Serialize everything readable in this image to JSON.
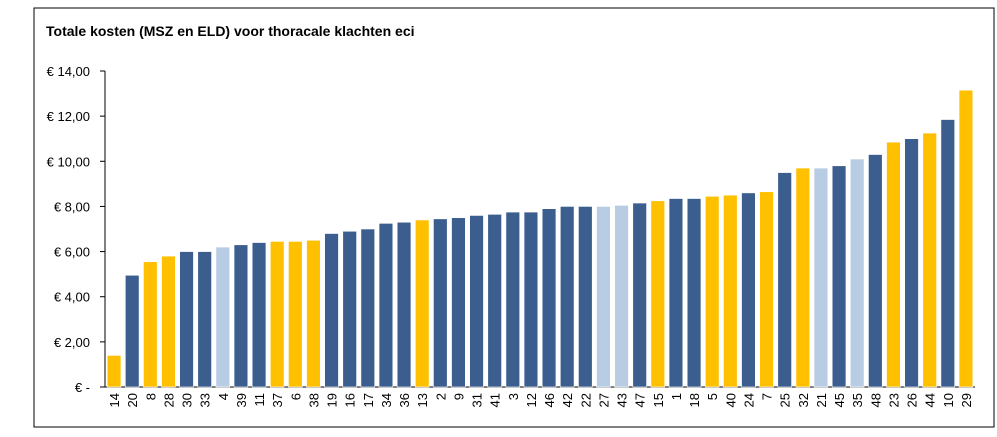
{
  "chart_data": {
    "type": "bar",
    "title": "Totale kosten (MSZ en ELD) voor thoracale klachten eci",
    "categories": [
      "14",
      "20",
      "8",
      "28",
      "30",
      "33",
      "4",
      "39",
      "11",
      "37",
      "6",
      "38",
      "19",
      "16",
      "17",
      "34",
      "36",
      "13",
      "2",
      "9",
      "31",
      "41",
      "3",
      "12",
      "46",
      "42",
      "22",
      "27",
      "43",
      "47",
      "15",
      "1",
      "18",
      "5",
      "40",
      "24",
      "7",
      "25",
      "32",
      "21",
      "45",
      "35",
      "48",
      "23",
      "26",
      "44",
      "10",
      "29"
    ],
    "values": [
      1.4,
      4.95,
      5.55,
      5.8,
      6.0,
      6.0,
      6.2,
      6.3,
      6.4,
      6.45,
      6.45,
      6.5,
      6.8,
      6.9,
      7.0,
      7.25,
      7.3,
      7.4,
      7.45,
      7.5,
      7.6,
      7.65,
      7.75,
      7.75,
      7.9,
      8.0,
      8.0,
      8.0,
      8.05,
      8.15,
      8.25,
      8.35,
      8.35,
      8.45,
      8.5,
      8.6,
      8.65,
      9.5,
      9.7,
      9.7,
      9.8,
      10.1,
      10.3,
      10.85,
      11.0,
      11.25,
      11.85,
      13.15
    ],
    "colors": [
      "#ffc000",
      "#3b5e8f",
      "#ffc000",
      "#ffc000",
      "#3b5e8f",
      "#3b5e8f",
      "#b8cce4",
      "#3b5e8f",
      "#3b5e8f",
      "#ffc000",
      "#ffc000",
      "#ffc000",
      "#3b5e8f",
      "#3b5e8f",
      "#3b5e8f",
      "#3b5e8f",
      "#3b5e8f",
      "#ffc000",
      "#3b5e8f",
      "#3b5e8f",
      "#3b5e8f",
      "#3b5e8f",
      "#3b5e8f",
      "#3b5e8f",
      "#3b5e8f",
      "#3b5e8f",
      "#3b5e8f",
      "#b8cce4",
      "#b8cce4",
      "#3b5e8f",
      "#ffc000",
      "#3b5e8f",
      "#3b5e8f",
      "#ffc000",
      "#ffc000",
      "#3b5e8f",
      "#ffc000",
      "#3b5e8f",
      "#ffc000",
      "#b8cce4",
      "#3b5e8f",
      "#b8cce4",
      "#3b5e8f",
      "#ffc000",
      "#3b5e8f",
      "#ffc000",
      "#3b5e8f",
      "#ffc000"
    ],
    "ylim": [
      0,
      14
    ],
    "yticks": [
      {
        "value": 0,
        "label": "€ -"
      },
      {
        "value": 2,
        "label": "€ 2,00"
      },
      {
        "value": 4,
        "label": "€ 4,00"
      },
      {
        "value": 6,
        "label": "€ 6,00"
      },
      {
        "value": 8,
        "label": "€ 8,00"
      },
      {
        "value": 10,
        "label": "€ 10,00"
      },
      {
        "value": 12,
        "label": "€ 12,00"
      },
      {
        "value": 14,
        "label": "€ 14,00"
      }
    ]
  }
}
